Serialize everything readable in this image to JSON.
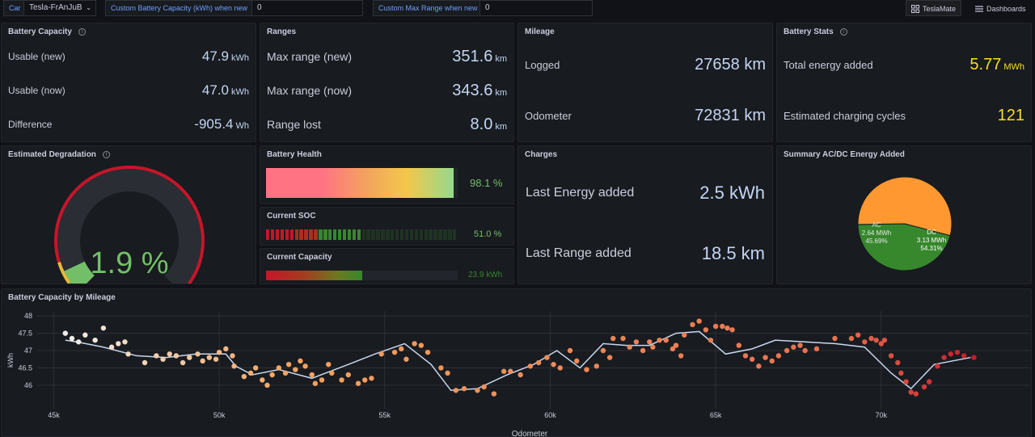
{
  "topbar": {
    "car_label": "Car",
    "car_value": "Tesla-FrAnJuB",
    "capacity_label": "Custom Battery Capacity (kWh) when new",
    "capacity_value": "0",
    "range_label": "Custom Max Range when new",
    "range_value": "0",
    "teslamate_label": "TeslaMate",
    "dashboards_label": "Dashboards"
  },
  "battery_capacity": {
    "title": "Battery Capacity",
    "rows": [
      {
        "label": "Usable (new)",
        "value": "47.9",
        "unit": "kWh"
      },
      {
        "label": "Usable (now)",
        "value": "47.0",
        "unit": "kWh"
      },
      {
        "label": "Difference",
        "value": "-905.4",
        "unit": "Wh"
      }
    ]
  },
  "ranges": {
    "title": "Ranges",
    "rows": [
      {
        "label": "Max range (new)",
        "value": "351.6",
        "unit": "km"
      },
      {
        "label": "Max range (now)",
        "value": "343.6",
        "unit": "km"
      },
      {
        "label": "Range lost",
        "value": "8.0",
        "unit": "km"
      }
    ]
  },
  "mileage": {
    "title": "Mileage",
    "rows": [
      {
        "label": "Logged",
        "value": "27658 km"
      },
      {
        "label": "Odometer",
        "value": "72831 km"
      }
    ]
  },
  "battery_stats": {
    "title": "Battery Stats",
    "rows": [
      {
        "label": "Total energy added",
        "value": "5.77",
        "unit": "MWh"
      },
      {
        "label": "Estimated charging cycles",
        "value": "121"
      }
    ]
  },
  "degradation": {
    "title": "Estimated Degradation",
    "value_text": "1.9 %",
    "value": 1.9
  },
  "battery_health": {
    "title": "Battery Health",
    "value_text": "98.1 %",
    "fraction": 0.981
  },
  "current_soc": {
    "title": "Current SOC",
    "value_text": "51.0 %",
    "fraction": 0.51,
    "segments": 40
  },
  "current_capacity": {
    "title": "Current Capacity",
    "value_text": "23.9 kWh",
    "fraction": 0.5
  },
  "charges": {
    "title": "Charges",
    "rows": [
      {
        "label": "Last Energy added",
        "value": "2.5 kWh"
      },
      {
        "label": "Last Range added",
        "value": "18.5 km"
      }
    ]
  },
  "summary": {
    "title": "Summary AC/DC Energy Added",
    "slices": [
      {
        "name": "AC",
        "value_text": "2.64 MWh",
        "percent_text": "45.69%",
        "percent": 45.69,
        "color": "#37872d"
      },
      {
        "name": "DC",
        "value_text": "3.13 MWh",
        "percent_text": "54.31%",
        "percent": 54.31,
        "color": "#ff9830"
      }
    ]
  },
  "chart_data": {
    "type": "scatter",
    "title": "Battery Capacity by Mileage",
    "xlabel": "Odometer",
    "ylabel": "kWh",
    "xlim": [
      44500,
      74500
    ],
    "ylim": [
      45.6,
      48.05
    ],
    "x_ticks": [
      45000,
      50000,
      55000,
      60000,
      65000,
      70000
    ],
    "x_tick_labels": [
      "45k",
      "50k",
      "55k",
      "60k",
      "65k",
      "70k"
    ],
    "y_ticks": [
      46,
      46.5,
      47,
      47.5,
      48
    ],
    "y_tick_labels": [
      "46",
      "46.5",
      "47",
      "47.5",
      "48"
    ],
    "grid": true,
    "line": {
      "color": "#c8d8f0",
      "x": [
        45350,
        45700,
        46500,
        47500,
        48400,
        49300,
        50200,
        50500,
        51000,
        51800,
        52800,
        53900,
        54700,
        55600,
        56400,
        57000,
        57800,
        58700,
        59500,
        60200,
        60900,
        61600,
        62300,
        63000,
        63800,
        64500,
        65300,
        66100,
        66800,
        67700,
        68600,
        69500,
        70300,
        70900,
        71600,
        72700
      ],
      "y": [
        47.3,
        47.25,
        47.1,
        46.85,
        46.8,
        46.9,
        46.9,
        46.55,
        46.3,
        46.45,
        46.2,
        46.6,
        46.9,
        47.2,
        46.6,
        45.85,
        45.9,
        46.3,
        46.6,
        47.0,
        46.5,
        47.2,
        47.15,
        47.15,
        47.5,
        47.55,
        46.9,
        47.05,
        47.3,
        47.25,
        47.2,
        47.1,
        46.35,
        45.9,
        46.6,
        46.8
      ]
    },
    "points": [
      {
        "x": 45350,
        "y": 47.5
      },
      {
        "x": 45550,
        "y": 47.35
      },
      {
        "x": 45750,
        "y": 47.25
      },
      {
        "x": 45950,
        "y": 47.45
      },
      {
        "x": 46250,
        "y": 47.3
      },
      {
        "x": 46500,
        "y": 47.65
      },
      {
        "x": 46750,
        "y": 47.1
      },
      {
        "x": 46950,
        "y": 47.2
      },
      {
        "x": 47150,
        "y": 47.25
      },
      {
        "x": 47250,
        "y": 46.9
      },
      {
        "x": 47750,
        "y": 46.65
      },
      {
        "x": 48100,
        "y": 46.85
      },
      {
        "x": 48300,
        "y": 46.75
      },
      {
        "x": 48500,
        "y": 46.9
      },
      {
        "x": 48700,
        "y": 46.85
      },
      {
        "x": 48900,
        "y": 46.65
      },
      {
        "x": 49100,
        "y": 46.8
      },
      {
        "x": 49350,
        "y": 46.9
      },
      {
        "x": 49500,
        "y": 46.7
      },
      {
        "x": 49700,
        "y": 46.8
      },
      {
        "x": 49900,
        "y": 46.75
      },
      {
        "x": 50000,
        "y": 46.95
      },
      {
        "x": 50200,
        "y": 47.05
      },
      {
        "x": 50400,
        "y": 46.85
      },
      {
        "x": 50450,
        "y": 46.55
      },
      {
        "x": 50750,
        "y": 46.25
      },
      {
        "x": 50950,
        "y": 46.35
      },
      {
        "x": 51100,
        "y": 46.5
      },
      {
        "x": 51300,
        "y": 46.15
      },
      {
        "x": 51450,
        "y": 46.0
      },
      {
        "x": 51600,
        "y": 46.3
      },
      {
        "x": 51800,
        "y": 46.5
      },
      {
        "x": 52000,
        "y": 46.35
      },
      {
        "x": 52100,
        "y": 46.6
      },
      {
        "x": 52300,
        "y": 46.45
      },
      {
        "x": 52450,
        "y": 46.7
      },
      {
        "x": 52600,
        "y": 46.55
      },
      {
        "x": 52800,
        "y": 46.3
      },
      {
        "x": 52900,
        "y": 46.05
      },
      {
        "x": 53100,
        "y": 46.15
      },
      {
        "x": 53300,
        "y": 46.6
      },
      {
        "x": 53400,
        "y": 46.35
      },
      {
        "x": 53700,
        "y": 46.15
      },
      {
        "x": 53900,
        "y": 46.3
      },
      {
        "x": 54200,
        "y": 46.05
      },
      {
        "x": 54400,
        "y": 46.15
      },
      {
        "x": 54600,
        "y": 46.2
      },
      {
        "x": 54900,
        "y": 46.9
      },
      {
        "x": 55300,
        "y": 46.95
      },
      {
        "x": 55500,
        "y": 47.05
      },
      {
        "x": 55650,
        "y": 46.75
      },
      {
        "x": 55900,
        "y": 47.2
      },
      {
        "x": 56100,
        "y": 47.15
      },
      {
        "x": 56300,
        "y": 46.95
      },
      {
        "x": 56700,
        "y": 46.5
      },
      {
        "x": 56900,
        "y": 46.35
      },
      {
        "x": 57150,
        "y": 45.85
      },
      {
        "x": 57400,
        "y": 45.9
      },
      {
        "x": 57800,
        "y": 45.85
      },
      {
        "x": 58000,
        "y": 45.95
      },
      {
        "x": 58300,
        "y": 45.75
      },
      {
        "x": 58600,
        "y": 46.4
      },
      {
        "x": 58800,
        "y": 46.4
      },
      {
        "x": 59100,
        "y": 46.3
      },
      {
        "x": 59400,
        "y": 46.55
      },
      {
        "x": 59650,
        "y": 46.65
      },
      {
        "x": 59900,
        "y": 46.8
      },
      {
        "x": 60100,
        "y": 46.6
      },
      {
        "x": 60300,
        "y": 46.5
      },
      {
        "x": 60600,
        "y": 47.0
      },
      {
        "x": 60800,
        "y": 46.7
      },
      {
        "x": 61100,
        "y": 46.45
      },
      {
        "x": 61400,
        "y": 46.55
      },
      {
        "x": 61600,
        "y": 47.0
      },
      {
        "x": 61800,
        "y": 46.8
      },
      {
        "x": 61900,
        "y": 47.35
      },
      {
        "x": 62200,
        "y": 47.35
      },
      {
        "x": 62400,
        "y": 47.1
      },
      {
        "x": 62600,
        "y": 47.25
      },
      {
        "x": 62800,
        "y": 47.0
      },
      {
        "x": 63000,
        "y": 47.25
      },
      {
        "x": 63100,
        "y": 47.1
      },
      {
        "x": 63300,
        "y": 47.3
      },
      {
        "x": 63500,
        "y": 47.3
      },
      {
        "x": 63700,
        "y": 47.05
      },
      {
        "x": 63800,
        "y": 47.15
      },
      {
        "x": 63950,
        "y": 46.85
      },
      {
        "x": 64050,
        "y": 47.45
      },
      {
        "x": 64300,
        "y": 47.75
      },
      {
        "x": 64500,
        "y": 47.85
      },
      {
        "x": 64700,
        "y": 47.6
      },
      {
        "x": 64850,
        "y": 47.3
      },
      {
        "x": 65000,
        "y": 47.7
      },
      {
        "x": 65200,
        "y": 47.7
      },
      {
        "x": 65350,
        "y": 47.65
      },
      {
        "x": 65500,
        "y": 47.6
      },
      {
        "x": 65700,
        "y": 47.15
      },
      {
        "x": 65900,
        "y": 46.85
      },
      {
        "x": 66100,
        "y": 46.75
      },
      {
        "x": 66300,
        "y": 46.55
      },
      {
        "x": 66500,
        "y": 46.8
      },
      {
        "x": 66700,
        "y": 46.7
      },
      {
        "x": 66900,
        "y": 46.85
      },
      {
        "x": 67150,
        "y": 47.0
      },
      {
        "x": 67350,
        "y": 47.1
      },
      {
        "x": 67550,
        "y": 47.15
      },
      {
        "x": 67700,
        "y": 47.0
      },
      {
        "x": 68050,
        "y": 47.05
      },
      {
        "x": 68600,
        "y": 47.35
      },
      {
        "x": 69100,
        "y": 47.35
      },
      {
        "x": 69300,
        "y": 47.45
      },
      {
        "x": 69500,
        "y": 47.25
      },
      {
        "x": 69700,
        "y": 47.35
      },
      {
        "x": 69850,
        "y": 47.3
      },
      {
        "x": 70000,
        "y": 47.2
      },
      {
        "x": 70100,
        "y": 47.3
      },
      {
        "x": 70300,
        "y": 46.85
      },
      {
        "x": 70500,
        "y": 46.65
      },
      {
        "x": 70600,
        "y": 46.35
      },
      {
        "x": 70750,
        "y": 46.1
      },
      {
        "x": 70900,
        "y": 45.8
      },
      {
        "x": 71050,
        "y": 45.75
      },
      {
        "x": 71300,
        "y": 45.95
      },
      {
        "x": 71450,
        "y": 46.1
      },
      {
        "x": 71700,
        "y": 46.55
      },
      {
        "x": 71900,
        "y": 46.8
      },
      {
        "x": 72100,
        "y": 46.9
      },
      {
        "x": 72300,
        "y": 46.95
      },
      {
        "x": 72500,
        "y": 46.85
      },
      {
        "x": 72800,
        "y": 46.8
      }
    ],
    "point_colors": {
      "start": "#f2f2f2",
      "mid": "#f4a460",
      "end": "#c4162a"
    }
  }
}
